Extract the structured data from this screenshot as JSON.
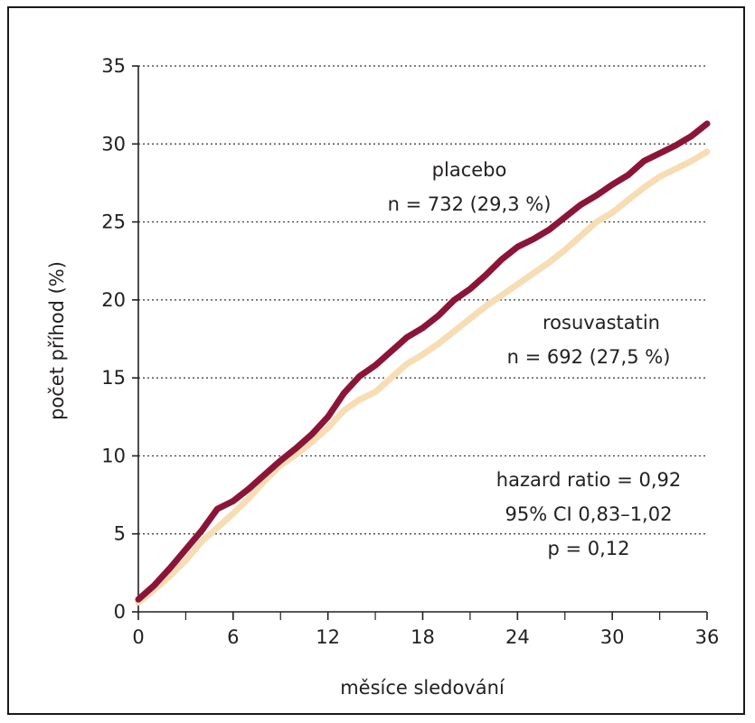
{
  "chart_data": {
    "type": "line",
    "title": "",
    "xlabel": "měsíce sledování",
    "ylabel": "počet příhod (%)",
    "xlim": [
      0,
      36
    ],
    "ylim": [
      0,
      35
    ],
    "x_ticks": [
      0,
      6,
      12,
      18,
      24,
      30,
      36
    ],
    "x_minor_ticks": [
      3,
      9,
      15,
      21,
      27,
      33
    ],
    "y_ticks": [
      0,
      5,
      10,
      15,
      20,
      25,
      30,
      35
    ],
    "x_tick_labels": [
      "0",
      "6",
      "12",
      "18",
      "24",
      "30",
      "36"
    ],
    "y_tick_labels": [
      "0",
      "5",
      "10",
      "15",
      "20",
      "25",
      "30",
      "35"
    ],
    "grid": "horizontal dotted",
    "series": [
      {
        "name": "placebo",
        "color": "#8b1538",
        "x": [
          0,
          1,
          2,
          3,
          4,
          5,
          6,
          7,
          8,
          9,
          10,
          11,
          12,
          13,
          14,
          15,
          16,
          17,
          18,
          19,
          20,
          21,
          22,
          23,
          24,
          25,
          26,
          27,
          28,
          29,
          30,
          31,
          32,
          33,
          34,
          35,
          36
        ],
        "y": [
          0.8,
          1.7,
          2.8,
          4.0,
          5.2,
          6.6,
          7.1,
          7.9,
          8.8,
          9.7,
          10.5,
          11.4,
          12.5,
          14.0,
          15.1,
          15.8,
          16.7,
          17.6,
          18.2,
          19.0,
          20.0,
          20.7,
          21.6,
          22.6,
          23.4,
          23.9,
          24.5,
          25.3,
          26.1,
          26.7,
          27.4,
          28.0,
          28.9,
          29.4,
          29.9,
          30.5,
          31.3
        ]
      },
      {
        "name": "rosuvastatin",
        "color": "#f7ddb3",
        "x": [
          0,
          1,
          2,
          3,
          4,
          5,
          6,
          7,
          8,
          9,
          10,
          11,
          12,
          13,
          14,
          15,
          16,
          17,
          18,
          19,
          20,
          21,
          22,
          23,
          24,
          25,
          26,
          27,
          28,
          29,
          30,
          31,
          32,
          33,
          34,
          35,
          36
        ],
        "y": [
          0.6,
          1.4,
          2.3,
          3.3,
          4.5,
          5.4,
          6.3,
          7.3,
          8.4,
          9.4,
          10.1,
          10.9,
          11.8,
          12.9,
          13.6,
          14.1,
          15.0,
          15.9,
          16.5,
          17.2,
          18.0,
          18.8,
          19.6,
          20.3,
          21.0,
          21.7,
          22.4,
          23.2,
          24.1,
          25.0,
          25.6,
          26.4,
          27.2,
          27.9,
          28.4,
          28.9,
          29.5
        ]
      }
    ],
    "annotations": {
      "placebo_label": "placebo",
      "placebo_n": "n = 732 (29,3 %)",
      "rosuvastatin_label": "rosuvastatin",
      "rosuvastatin_n": "n = 692 (27,5 %)",
      "hazard_ratio": "hazard ratio = 0,92",
      "ci": "95% CI 0,83–1,02",
      "p_value": "p = 0,12"
    }
  }
}
